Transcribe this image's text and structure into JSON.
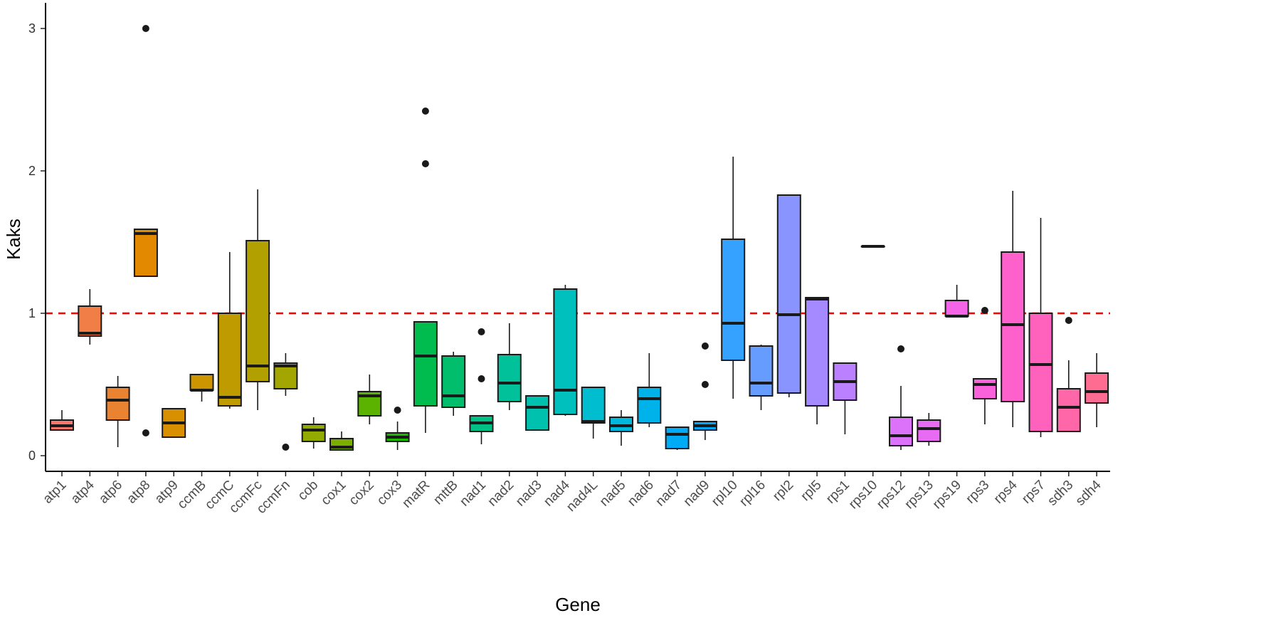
{
  "chart_data": {
    "type": "boxplot",
    "title": "",
    "xlabel": "Gene",
    "ylabel": "Kaks",
    "ylim": [
      -0.11,
      3.15
    ],
    "yticks": [
      0,
      1,
      2,
      3
    ],
    "reference_line": {
      "y": 1,
      "color": "#ff0000",
      "style": "dashed"
    },
    "grid": false,
    "legend": "none",
    "series": [
      {
        "name": "atp1",
        "color": "#F8766D",
        "lower": 0.18,
        "q1": 0.18,
        "median": 0.21,
        "q3": 0.25,
        "upper": 0.32,
        "outliers": []
      },
      {
        "name": "atp4",
        "color": "#F07E46",
        "lower": 0.78,
        "q1": 0.84,
        "median": 0.86,
        "q3": 1.05,
        "upper": 1.17,
        "outliers": []
      },
      {
        "name": "atp6",
        "color": "#EA8331",
        "lower": 0.06,
        "q1": 0.25,
        "median": 0.39,
        "q3": 0.48,
        "upper": 0.56,
        "outliers": []
      },
      {
        "name": "atp8",
        "color": "#E38900",
        "lower": 1.26,
        "q1": 1.26,
        "median": 1.56,
        "q3": 1.59,
        "upper": 1.59,
        "outliers": [
          3.0,
          0.16
        ]
      },
      {
        "name": "atp9",
        "color": "#D89000",
        "lower": 0.13,
        "q1": 0.13,
        "median": 0.23,
        "q3": 0.33,
        "upper": 0.33,
        "outliers": []
      },
      {
        "name": "ccmB",
        "color": "#CD9600",
        "lower": 0.38,
        "q1": 0.46,
        "median": 0.46,
        "q3": 0.57,
        "upper": 0.57,
        "outliers": []
      },
      {
        "name": "ccmC",
        "color": "#C09B00",
        "lower": 0.33,
        "q1": 0.35,
        "median": 0.41,
        "q3": 1.0,
        "upper": 1.43,
        "outliers": []
      },
      {
        "name": "ccmFc",
        "color": "#B2A000",
        "lower": 0.32,
        "q1": 0.52,
        "median": 0.63,
        "q3": 1.51,
        "upper": 1.87,
        "outliers": []
      },
      {
        "name": "ccmFn",
        "color": "#A3A500",
        "lower": 0.42,
        "q1": 0.47,
        "median": 0.63,
        "q3": 0.65,
        "upper": 0.72,
        "outliers": [
          0.06
        ]
      },
      {
        "name": "cob",
        "color": "#93AA00",
        "lower": 0.05,
        "q1": 0.1,
        "median": 0.18,
        "q3": 0.22,
        "upper": 0.27,
        "outliers": []
      },
      {
        "name": "cox1",
        "color": "#7CAE00",
        "lower": 0.04,
        "q1": 0.04,
        "median": 0.06,
        "q3": 0.12,
        "upper": 0.17,
        "outliers": []
      },
      {
        "name": "cox2",
        "color": "#5BB300",
        "lower": 0.22,
        "q1": 0.28,
        "median": 0.42,
        "q3": 0.45,
        "upper": 0.57,
        "outliers": []
      },
      {
        "name": "cox3",
        "color": "#1CB800",
        "lower": 0.04,
        "q1": 0.1,
        "median": 0.13,
        "q3": 0.16,
        "upper": 0.24,
        "outliers": [
          0.32
        ]
      },
      {
        "name": "matR",
        "color": "#00BB4E",
        "lower": 0.16,
        "q1": 0.35,
        "median": 0.7,
        "q3": 0.94,
        "upper": 0.94,
        "outliers": [
          2.42,
          2.05
        ]
      },
      {
        "name": "mttB",
        "color": "#00BE6C",
        "lower": 0.28,
        "q1": 0.34,
        "median": 0.42,
        "q3": 0.7,
        "upper": 0.73,
        "outliers": []
      },
      {
        "name": "nad1",
        "color": "#00C085",
        "lower": 0.08,
        "q1": 0.17,
        "median": 0.23,
        "q3": 0.28,
        "upper": 0.28,
        "outliers": [
          0.87,
          0.54
        ]
      },
      {
        "name": "nad2",
        "color": "#00C19A",
        "lower": 0.32,
        "q1": 0.38,
        "median": 0.51,
        "q3": 0.71,
        "upper": 0.93,
        "outliers": []
      },
      {
        "name": "nad3",
        "color": "#00C1AE",
        "lower": 0.18,
        "q1": 0.18,
        "median": 0.34,
        "q3": 0.42,
        "upper": 0.42,
        "outliers": []
      },
      {
        "name": "nad4",
        "color": "#00C0BE",
        "lower": 0.28,
        "q1": 0.29,
        "median": 0.46,
        "q3": 1.17,
        "upper": 1.2,
        "outliers": []
      },
      {
        "name": "nad4L",
        "color": "#00BDCF",
        "lower": 0.12,
        "q1": 0.23,
        "median": 0.24,
        "q3": 0.48,
        "upper": 0.48,
        "outliers": []
      },
      {
        "name": "nad5",
        "color": "#00B8DD",
        "lower": 0.07,
        "q1": 0.17,
        "median": 0.21,
        "q3": 0.27,
        "upper": 0.32,
        "outliers": []
      },
      {
        "name": "nad6",
        "color": "#00B2EA",
        "lower": 0.2,
        "q1": 0.23,
        "median": 0.4,
        "q3": 0.48,
        "upper": 0.72,
        "outliers": []
      },
      {
        "name": "nad7",
        "color": "#00ABF5",
        "lower": 0.04,
        "q1": 0.05,
        "median": 0.15,
        "q3": 0.2,
        "upper": 0.2,
        "outliers": []
      },
      {
        "name": "nad9",
        "color": "#00A5FF",
        "lower": 0.11,
        "q1": 0.18,
        "median": 0.21,
        "q3": 0.24,
        "upper": 0.24,
        "outliers": [
          0.77,
          0.5
        ]
      },
      {
        "name": "rpl10",
        "color": "#35A2FF",
        "lower": 0.4,
        "q1": 0.67,
        "median": 0.93,
        "q3": 1.52,
        "upper": 2.1,
        "outliers": []
      },
      {
        "name": "rpl16",
        "color": "#679CFF",
        "lower": 0.32,
        "q1": 0.42,
        "median": 0.51,
        "q3": 0.77,
        "upper": 0.78,
        "outliers": []
      },
      {
        "name": "rpl2",
        "color": "#8A94FF",
        "lower": 0.41,
        "q1": 0.44,
        "median": 0.99,
        "q3": 1.83,
        "upper": 1.83,
        "outliers": []
      },
      {
        "name": "rpl5",
        "color": "#A58AFF",
        "lower": 0.22,
        "q1": 0.35,
        "median": 1.1,
        "q3": 1.11,
        "upper": 1.11,
        "outliers": []
      },
      {
        "name": "rps1",
        "color": "#BB80FF",
        "lower": 0.15,
        "q1": 0.39,
        "median": 0.52,
        "q3": 0.65,
        "upper": 0.65,
        "outliers": []
      },
      {
        "name": "rps10",
        "color": "#CD77FF",
        "lower": 1.47,
        "q1": 1.47,
        "median": 1.47,
        "q3": 1.47,
        "upper": 1.47,
        "outliers": []
      },
      {
        "name": "rps12",
        "color": "#DC71FA",
        "lower": 0.04,
        "q1": 0.07,
        "median": 0.14,
        "q3": 0.27,
        "upper": 0.49,
        "outliers": [
          0.75
        ]
      },
      {
        "name": "rps13",
        "color": "#E86BF3",
        "lower": 0.07,
        "q1": 0.1,
        "median": 0.19,
        "q3": 0.25,
        "upper": 0.3,
        "outliers": []
      },
      {
        "name": "rps19",
        "color": "#F365E6",
        "lower": 0.97,
        "q1": 0.98,
        "median": 0.98,
        "q3": 1.09,
        "upper": 1.2,
        "outliers": []
      },
      {
        "name": "rps3",
        "color": "#FA62DB",
        "lower": 0.22,
        "q1": 0.4,
        "median": 0.5,
        "q3": 0.54,
        "upper": 0.54,
        "outliers": [
          1.02
        ]
      },
      {
        "name": "rps4",
        "color": "#FF61CC",
        "lower": 0.2,
        "q1": 0.38,
        "median": 0.92,
        "q3": 1.43,
        "upper": 1.86,
        "outliers": []
      },
      {
        "name": "rps7",
        "color": "#FF62BC",
        "lower": 0.13,
        "q1": 0.17,
        "median": 0.64,
        "q3": 1.0,
        "upper": 1.67,
        "outliers": []
      },
      {
        "name": "sdh3",
        "color": "#FF67A9",
        "lower": 0.17,
        "q1": 0.17,
        "median": 0.34,
        "q3": 0.47,
        "upper": 0.67,
        "outliers": [
          0.95
        ]
      },
      {
        "name": "sdh4",
        "color": "#FF6C91",
        "lower": 0.2,
        "q1": 0.37,
        "median": 0.45,
        "q3": 0.58,
        "upper": 0.72,
        "outliers": []
      }
    ]
  }
}
